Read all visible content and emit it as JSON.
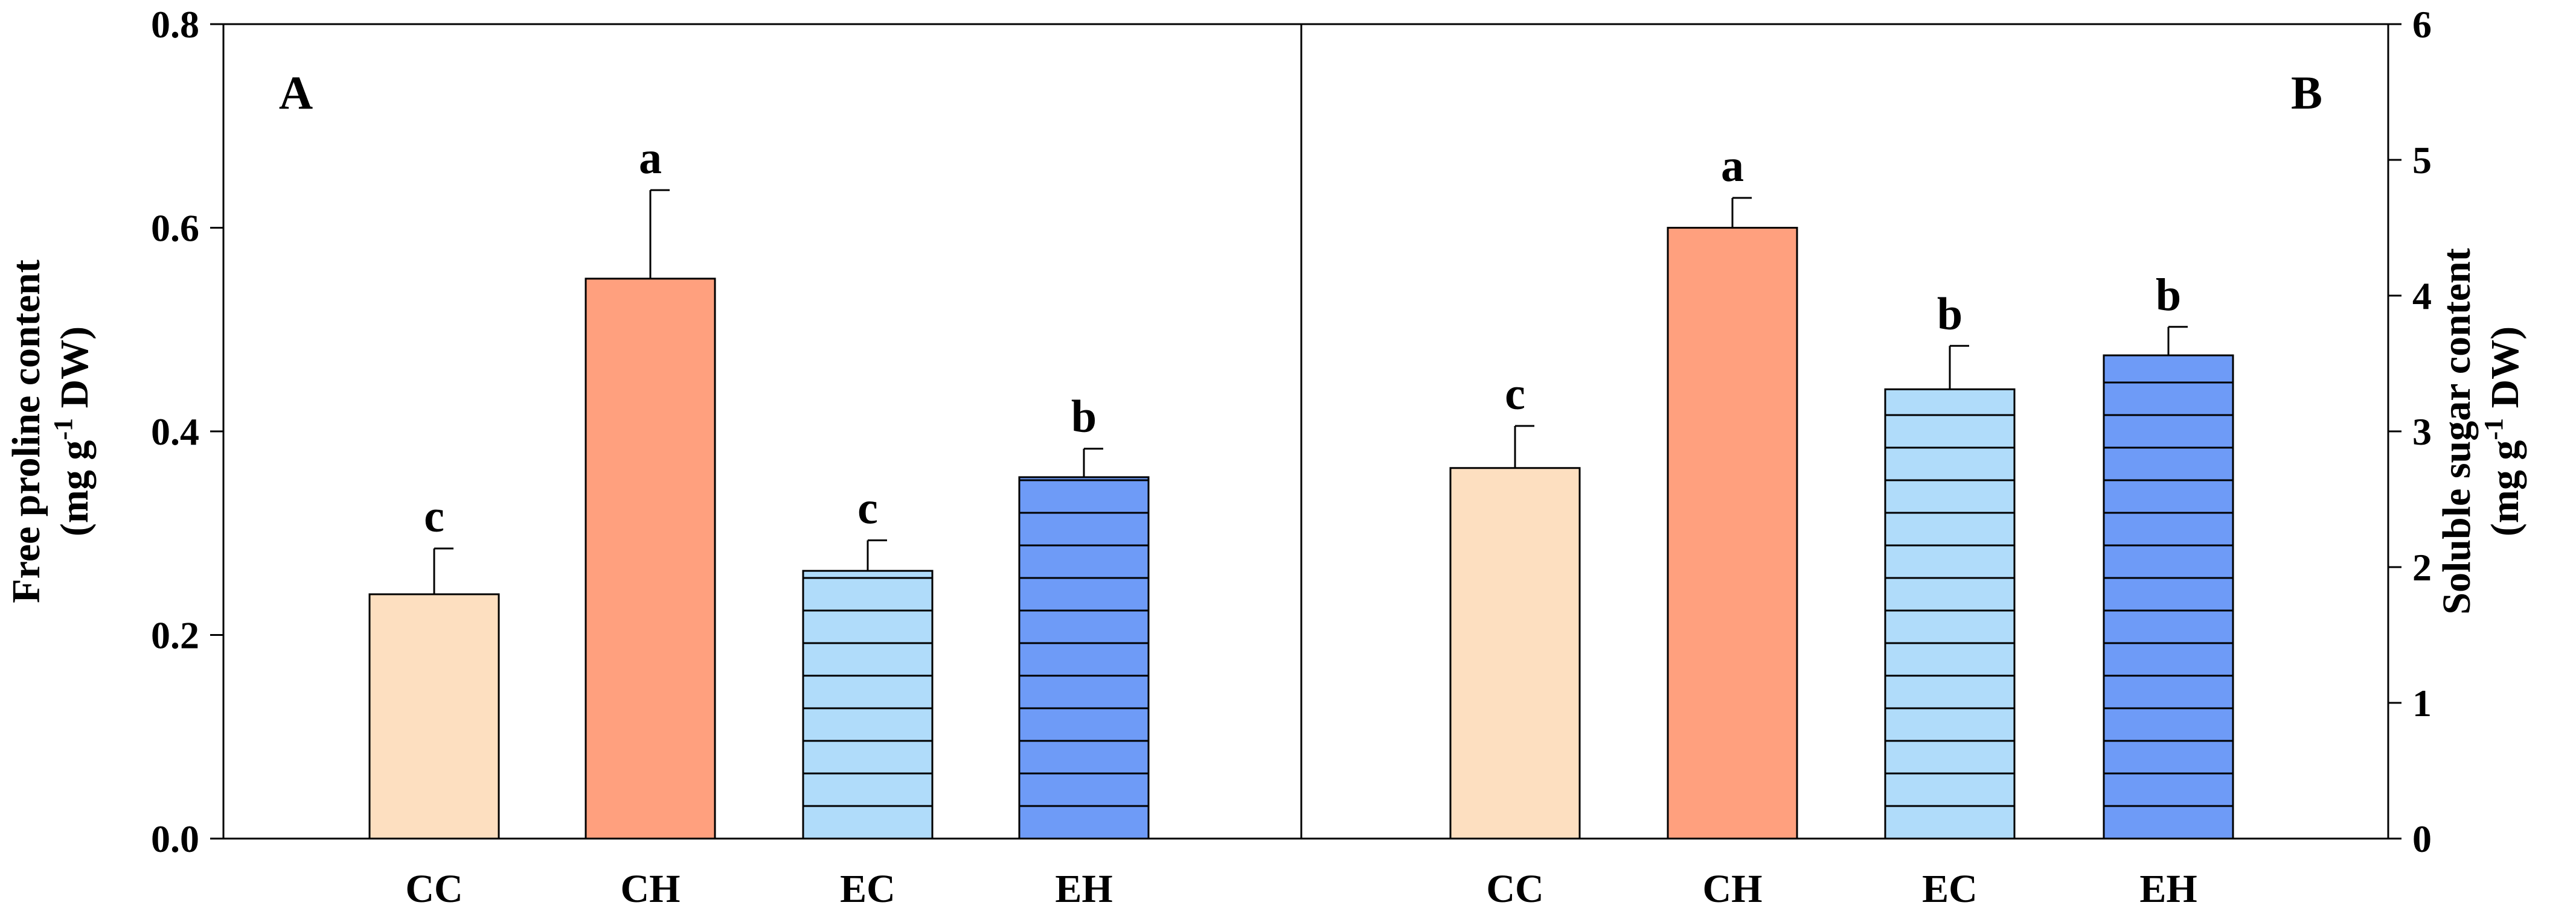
{
  "chart_data": [
    {
      "type": "bar",
      "panel_label": "A",
      "ylabel_line1": "Free proline content",
      "ylabel_line2_prefix": "(mg g",
      "ylabel_line2_sup": "-1",
      "ylabel_line2_suffix": " DW)",
      "y_axis_side": "left",
      "ylim": [
        0,
        0.8
      ],
      "yticks": [
        "0.0",
        "0.2",
        "0.4",
        "0.6",
        "0.8"
      ],
      "categories": [
        "CC",
        "CH",
        "EC",
        "EH"
      ],
      "values": [
        0.24,
        0.55,
        0.263,
        0.355
      ],
      "errors": [
        0.045,
        0.087,
        0.03,
        0.028
      ],
      "significance": [
        "c",
        "a",
        "c",
        "b"
      ]
    },
    {
      "type": "bar",
      "panel_label": "B",
      "ylabel_line1": "Soluble sugar content",
      "ylabel_line2_prefix": "(mg g",
      "ylabel_line2_sup": "-1",
      "ylabel_line2_suffix": " DW)",
      "y_axis_side": "right",
      "ylim": [
        0,
        6
      ],
      "yticks": [
        "0",
        "1",
        "2",
        "3",
        "4",
        "5",
        "6"
      ],
      "categories": [
        "CC",
        "CH",
        "EC",
        "EH"
      ],
      "values": [
        2.73,
        4.5,
        3.31,
        3.56
      ],
      "errors": [
        0.31,
        0.22,
        0.32,
        0.21
      ],
      "significance": [
        "c",
        "a",
        "b",
        "b"
      ]
    }
  ],
  "styles": {
    "bar_fills": [
      "#FDDFC0",
      "#FFA07E",
      "#B0DCFA",
      "#6E9BF7"
    ],
    "bar_hatched": [
      false,
      false,
      true,
      true
    ]
  }
}
